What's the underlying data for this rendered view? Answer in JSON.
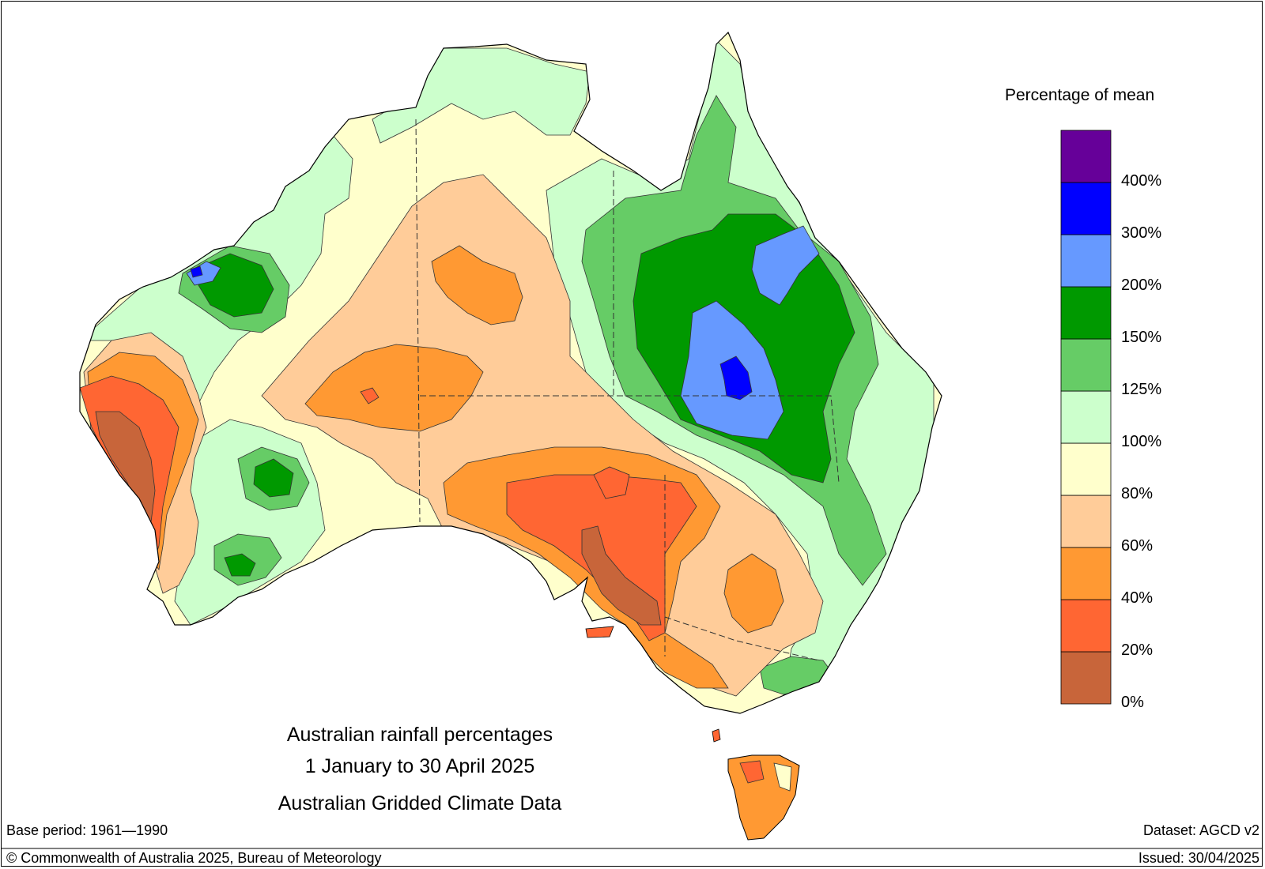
{
  "legend": {
    "title": "Percentage of mean",
    "bins": [
      {
        "label": "0%",
        "color": "#c8653a",
        "name": "0-20"
      },
      {
        "label": "20%",
        "color": "#ff6633",
        "name": "20-40"
      },
      {
        "label": "40%",
        "color": "#ff9933",
        "name": "40-60"
      },
      {
        "label": "60%",
        "color": "#ffcc99",
        "name": "60-80"
      },
      {
        "label": "80%",
        "color": "#ffffcc",
        "name": "80-100"
      },
      {
        "label": "100%",
        "color": "#ccffcc",
        "name": "100-125"
      },
      {
        "label": "125%",
        "color": "#66cc66",
        "name": "125-150"
      },
      {
        "label": "150%",
        "color": "#009900",
        "name": "150-200"
      },
      {
        "label": "200%",
        "color": "#6699ff",
        "name": "200-300"
      },
      {
        "label": "300%",
        "color": "#0000ff",
        "name": "300-400"
      },
      {
        "label": "400%",
        "color": "#660099",
        "name": "400+"
      }
    ]
  },
  "title": {
    "line1": "Australian rainfall percentages",
    "line2": "1 January to 30 April 2025",
    "line3": "Australian Gridded Climate Data"
  },
  "footer": {
    "base_period": "Base period: 1961—1990",
    "dataset": "Dataset: AGCD v2",
    "copyright": "© Commonwealth of Australia 2025, Bureau of Meteorology",
    "issued": "Issued: 30/04/2025"
  }
}
